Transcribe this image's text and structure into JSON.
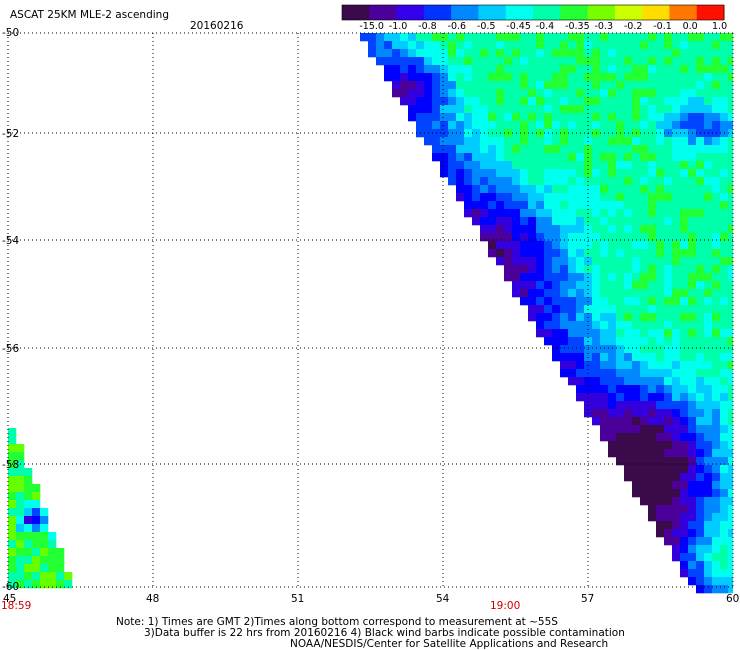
{
  "header": {
    "title": "ASCAT 25KM MLE-2 ascending",
    "date": "20160216"
  },
  "colorbar": {
    "labels": [
      "-15.0",
      "-1.0",
      "-0.8",
      "-0.6",
      "-0.5",
      "-0.45",
      "-0.4",
      "-0.35",
      "-0.3",
      "-0.2",
      "-0.1",
      "0.0",
      "1.0"
    ],
    "colors": [
      "#3b0a4a",
      "#4a0099",
      "#3300ee",
      "#0033ff",
      "#0088ff",
      "#00ccff",
      "#00ffee",
      "#00ffaa",
      "#22ff33",
      "#77ff00",
      "#ccff00",
      "#ffdd00",
      "#ff7700",
      "#ff1100"
    ]
  },
  "axes": {
    "lat_labels": [
      "-50",
      "-52",
      "-54",
      "-56",
      "-58",
      "-60"
    ],
    "lon_labels": [
      "45",
      "48",
      "51",
      "54",
      "57",
      "60"
    ],
    "time_labels": [
      "18:59",
      "19:00"
    ]
  },
  "notes": {
    "line1": "Note: 1) Times are GMT 2)Times along bottom correspond to measurement at ~55S",
    "line2": "3)Data buffer is 22 hrs from 20160216 4) Black wind barbs indicate possible contamination",
    "line3": "NOAA/NESDIS/Center for Satellite Applications and Research"
  }
}
